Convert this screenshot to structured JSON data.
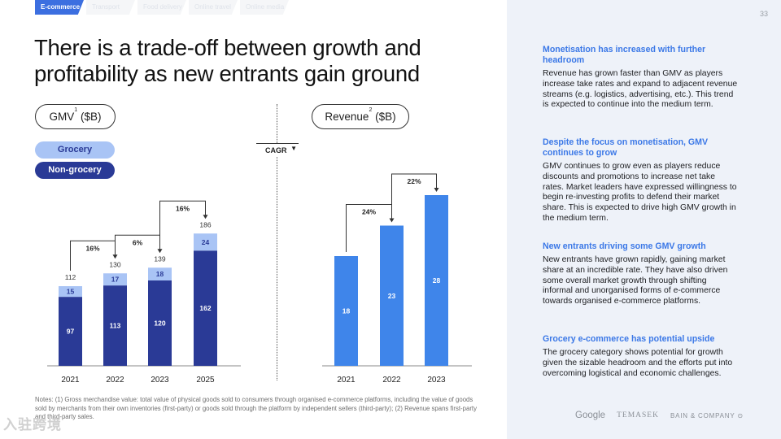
{
  "tabs": [
    "E-commerce",
    "Transport",
    "Food delivery",
    "Online travel",
    "Online media"
  ],
  "page_number": "33",
  "title": "There is a trade-off between growth and profitability as new entrants gain ground",
  "gmv_pill": {
    "label": "GMV",
    "sup": "1",
    "unit": " ($B)"
  },
  "revenue_pill": {
    "label": "Revenue",
    "sup": "2",
    "unit": " ($B)"
  },
  "legend": {
    "grocery": "Grocery",
    "non_grocery": "Non-grocery"
  },
  "cagr_label": "CAGR",
  "colors": {
    "grocery": "#a9c4f5",
    "non_grocery": "#2a3a96",
    "revenue": "#3f85ea",
    "accent": "#3b78e7",
    "panel_bg": "#eef2f9"
  },
  "chart_data": [
    {
      "type": "bar",
      "stacked": true,
      "categories": [
        "2021",
        "2022",
        "2023",
        "2025"
      ],
      "series": [
        {
          "name": "Non-grocery",
          "values": [
            97,
            113,
            120,
            162
          ]
        },
        {
          "name": "Grocery",
          "values": [
            15,
            17,
            18,
            24
          ]
        }
      ],
      "totals": [
        112,
        130,
        139,
        186
      ],
      "cagr_annotations": [
        {
          "from": "2021",
          "to": "2022",
          "label": "16%"
        },
        {
          "from": "2022",
          "to": "2023",
          "label": "6%"
        },
        {
          "from": "2023",
          "to": "2025",
          "label": "16%"
        }
      ]
    },
    {
      "type": "bar",
      "categories": [
        "2021",
        "2022",
        "2023"
      ],
      "series": [
        {
          "values": [
            18,
            23,
            28
          ]
        }
      ],
      "cagr_annotations": [
        {
          "from": "2021",
          "to": "2022",
          "label": "24%"
        },
        {
          "from": "2022",
          "to": "2023",
          "label": "22%"
        }
      ]
    }
  ],
  "notes": "Notes: (1) Gross merchandise value: total value of physical goods sold to consumers through organised e-commerce platforms, including the value of goods sold by merchants from their own inventories (first-party) or goods sold through the platform by independent sellers (third-party); (2) Revenue spans first-party and third-party sales.",
  "sections": [
    {
      "heading": "Monetisation has increased with further headroom",
      "body": "Revenue has grown faster than GMV as players increase take rates and expand to adjacent revenue streams (e.g. logistics, advertising, etc.). This trend is expected to continue into the medium term."
    },
    {
      "heading": "Despite the focus on monetisation, GMV continues to grow",
      "body": "GMV continues to grow even as players reduce discounts and promotions to increase net take rates. Market leaders have expressed willingness to begin re-investing profits to defend their market share. This is expected to drive high GMV growth in the medium term."
    },
    {
      "heading": "New entrants driving some GMV growth",
      "body": "New entrants have grown rapidly, gaining market share at an incredible rate. They have also driven some overall market growth through shifting informal and unorganised forms of e-commerce towards organised e-commerce platforms."
    },
    {
      "heading": "Grocery e-commerce has potential upside",
      "body": "The grocery category shows potential for growth given the sizable headroom and the efforts put into overcoming logistical and economic challenges."
    }
  ],
  "logos": {
    "google": "Google",
    "temasek": "TEMASEK",
    "bain": "BAIN & COMPANY"
  },
  "watermark": "入驻跨境"
}
